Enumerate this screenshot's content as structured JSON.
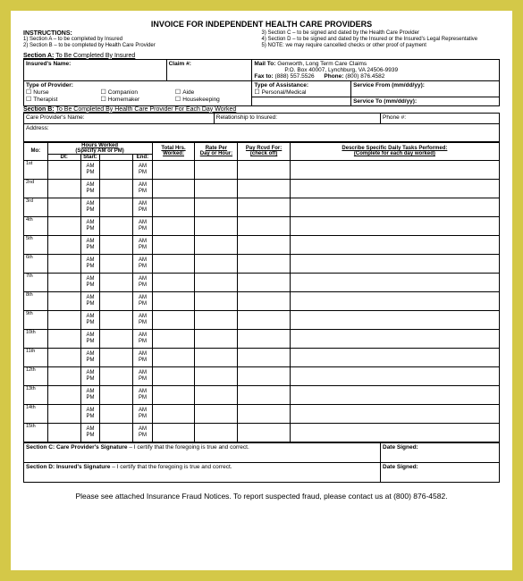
{
  "title": "INVOICE FOR INDEPENDENT HEALTH CARE PROVIDERS",
  "instr_head": "INSTRUCTIONS:",
  "instr_left": [
    "1)   Section A – to be completed by Insured",
    "2)   Section B – to be completed by Health Care Provider"
  ],
  "instr_right": [
    "3)   Section C – to be signed and dated by the Health Care Provider",
    "4)   Section D – to be signed and dated by the Insured or the Insured's Legal Representative",
    "5)   NOTE: we may require cancelled checks or other proof of payment"
  ],
  "secA_prefix": "Section A:",
  "secA_suffix": "To Be Completed By Insured",
  "rowA1": {
    "a": "Insured's Name:",
    "b": "Claim #:",
    "c1": "Mail To:",
    "c2": "Genworth, Long Term Care Claims",
    "c3": "P.O. Box 40007, Lynchburg, VA 24506-9939"
  },
  "rowA2": {
    "a": "Fax to:",
    "b": "(888) 557.5526",
    "c": "Phone:",
    "d": "(800) 876.4582"
  },
  "rowB": {
    "type": "Type of Provider:",
    "p1": "Nurse",
    "p2": "Companion",
    "p3": "Aide",
    "p4": "Therapist",
    "p5": "Homemaker",
    "p6": "Housekeeping",
    "assist": "Type of Assistance:",
    "a1": "Personal/Medical",
    "sf": "Service From (mm/dd/yy):",
    "st": "Service To (mm/dd/yy):"
  },
  "secB_prefix": "Section B:",
  "secB_suffix": "To Be Completed By Health Care Provider For Each Day Worked",
  "rowC": {
    "a": "Care Provider's Name:",
    "b": "Relationship to Insured:",
    "c": "Phone #:"
  },
  "rowD": "Address:",
  "grid": {
    "mo": "Mo:",
    "dt": "Dt:",
    "hours": "Hours Worked",
    "hours_sub": "(Specify AM or PM)",
    "start": "Start:",
    "end": "End:",
    "am": "AM",
    "pm": "PM",
    "total": "Total Hrs.\nWorked:",
    "rate": "Rate Per\nDay or Hour:",
    "pay": "Pay Rcvd For:\n(check off)",
    "desc": "Describe Specific Daily Tasks Performed:",
    "desc_sub": "(Complete for each day worked)",
    "days": [
      "1st",
      "2nd",
      "3rd",
      "4th",
      "5th",
      "6th",
      "7th",
      "8th",
      "9th",
      "10th",
      "11th",
      "12th",
      "13th",
      "14th",
      "15th"
    ]
  },
  "secC_prefix": "Section C:",
  "secC_who": "Care Provider's Signature",
  "secC_cert": " – I certify that the foregoing is true and correct.",
  "secD_prefix": "Section D:",
  "secD_who": "Insured's Signature",
  "secD_cert": " – I certify that the foregoing is true and correct.",
  "date_signed": "Date Signed:",
  "footer": "Please see attached Insurance Fraud Notices. To report suspected fraud, please contact us at (800) 876-4582."
}
